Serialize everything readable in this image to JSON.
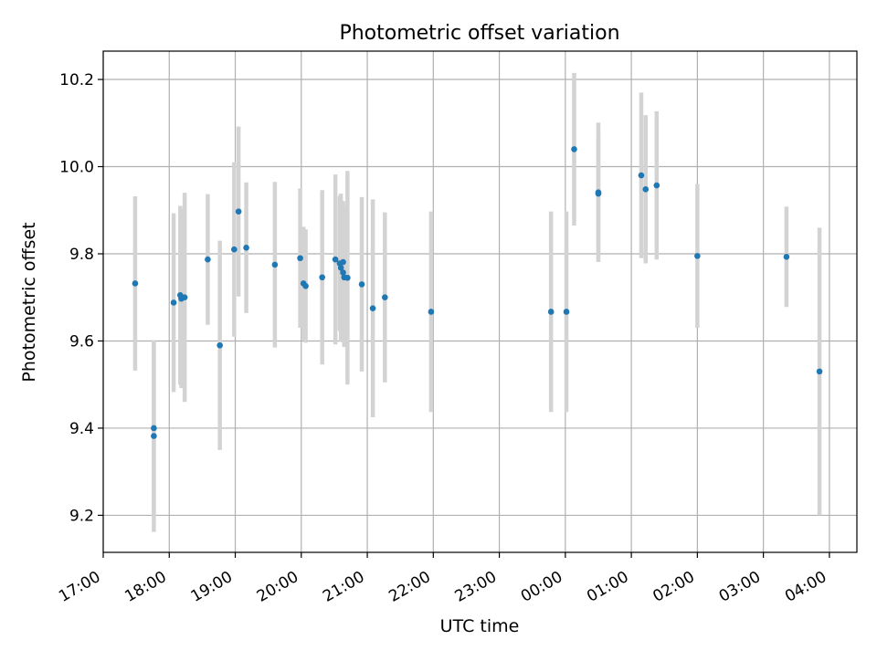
{
  "chart_data": {
    "type": "scatter",
    "title": "Photometric offset variation",
    "xlabel": "UTC time",
    "ylabel": "Photometric offset",
    "x_tick_labels": [
      "17:00",
      "18:00",
      "19:00",
      "20:00",
      "21:00",
      "22:00",
      "23:00",
      "00:00",
      "01:00",
      "02:00",
      "03:00",
      "04:00"
    ],
    "y_tick_labels": [
      "9.2",
      "9.4",
      "9.6",
      "9.8",
      "10.0",
      "10.2"
    ],
    "y_ticks": [
      9.2,
      9.4,
      9.6,
      9.8,
      10.0,
      10.2
    ],
    "xlim": [
      "17:00",
      "04:25"
    ],
    "ylim": [
      9.115,
      10.265
    ],
    "grid": true,
    "legend": "none",
    "colors": {
      "marker": "#1f77b4",
      "errorbar": "#d3d3d3",
      "grid": "#b0b0b0"
    },
    "points": [
      {
        "t": "17:29",
        "y": 9.732,
        "err": 0.2
      },
      {
        "t": "17:46",
        "y": 9.4,
        "err": 0.2
      },
      {
        "t": "17:46",
        "y": 9.382,
        "err": 0.22
      },
      {
        "t": "18:04",
        "y": 9.688,
        "err": 0.205
      },
      {
        "t": "18:10",
        "y": 9.705,
        "err": 0.205
      },
      {
        "t": "18:11",
        "y": 9.697,
        "err": 0.205
      },
      {
        "t": "18:14",
        "y": 9.7,
        "err": 0.24
      },
      {
        "t": "18:35",
        "y": 9.787,
        "err": 0.15
      },
      {
        "t": "18:46",
        "y": 9.59,
        "err": 0.24
      },
      {
        "t": "18:59",
        "y": 9.81,
        "err": 0.2
      },
      {
        "t": "19:03",
        "y": 9.897,
        "err": 0.195
      },
      {
        "t": "19:10",
        "y": 9.814,
        "err": 0.15
      },
      {
        "t": "19:36",
        "y": 9.775,
        "err": 0.19
      },
      {
        "t": "19:59",
        "y": 9.79,
        "err": 0.16
      },
      {
        "t": "20:02",
        "y": 9.732,
        "err": 0.13
      },
      {
        "t": "20:04",
        "y": 9.726,
        "err": 0.13
      },
      {
        "t": "20:19",
        "y": 9.746,
        "err": 0.2
      },
      {
        "t": "20:31",
        "y": 9.787,
        "err": 0.195
      },
      {
        "t": "20:35",
        "y": 9.778,
        "err": 0.155
      },
      {
        "t": "20:36",
        "y": 9.768,
        "err": 0.17
      },
      {
        "t": "20:38",
        "y": 9.757,
        "err": 0.16
      },
      {
        "t": "20:38",
        "y": 9.781,
        "err": 0.14
      },
      {
        "t": "20:39",
        "y": 9.746,
        "err": 0.16
      },
      {
        "t": "20:42",
        "y": 9.745,
        "err": 0.245
      },
      {
        "t": "20:55",
        "y": 9.73,
        "err": 0.2
      },
      {
        "t": "21:05",
        "y": 9.675,
        "err": 0.25
      },
      {
        "t": "21:16",
        "y": 9.7,
        "err": 0.195
      },
      {
        "t": "21:58",
        "y": 9.667,
        "err": 0.23
      },
      {
        "t": "23:47",
        "y": 9.667,
        "err": 0.23
      },
      {
        "t": "00:01",
        "y": 9.667,
        "err": 0.23
      },
      {
        "t": "00:08",
        "y": 10.04,
        "err": 0.175
      },
      {
        "t": "00:30",
        "y": 9.941,
        "err": 0.16
      },
      {
        "t": "00:30",
        "y": 9.938,
        "err": 0.13
      },
      {
        "t": "01:09",
        "y": 9.98,
        "err": 0.19
      },
      {
        "t": "01:13",
        "y": 9.948,
        "err": 0.17
      },
      {
        "t": "01:23",
        "y": 9.957,
        "err": 0.17
      },
      {
        "t": "02:00",
        "y": 9.795,
        "err": 0.165
      },
      {
        "t": "03:21",
        "y": 9.793,
        "err": 0.115
      },
      {
        "t": "03:51",
        "y": 9.53,
        "err": 0.33
      }
    ]
  }
}
